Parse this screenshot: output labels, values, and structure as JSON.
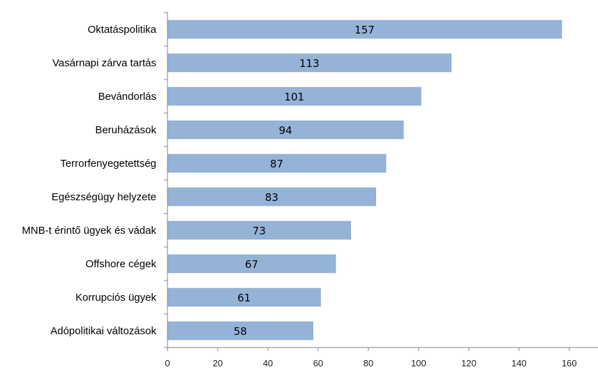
{
  "chart_data": {
    "type": "bar",
    "orientation": "horizontal",
    "title": "",
    "xlabel": "",
    "ylabel": "",
    "categories": [
      "Oktatáspolitika",
      "Vasárnapi zárva tartás",
      "Bevándorlás",
      "Beruházások",
      "Terrorfenyegetettség",
      "Egészségügy helyzete",
      "MNB-t érintő ügyek és vádak",
      "Offshore cégek",
      "Korrupciós ügyek",
      "Adópolitikai változások"
    ],
    "values": [
      157,
      113,
      101,
      94,
      87,
      83,
      73,
      67,
      61,
      58
    ],
    "xlim": [
      0,
      170
    ],
    "xticks": [
      0,
      20,
      40,
      60,
      80,
      100,
      120,
      140,
      160
    ],
    "grid": false,
    "legend": "none",
    "bar_color": "#95b3d7",
    "bar_border_color": "#7f9fc6",
    "axis_color": "#868686"
  }
}
